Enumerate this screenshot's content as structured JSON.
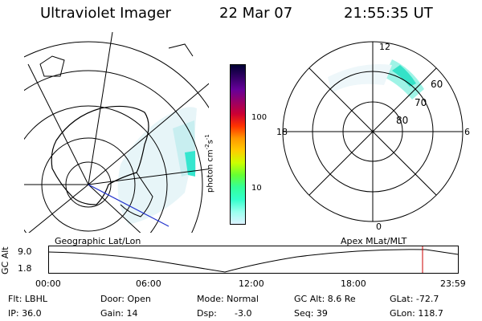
{
  "header": {
    "instrument": "Ultraviolet Imager",
    "date": "22 Mar 07",
    "time": "21:55:35 UT"
  },
  "colorbar": {
    "unit_label": "photon cm",
    "unit_sup1": "-2",
    "unit_s": "s",
    "unit_sup2": "-1",
    "ticks": [
      "100",
      "10"
    ],
    "scale": "log",
    "colors": [
      "#000033",
      "#330066",
      "#660099",
      "#990066",
      "#cc0033",
      "#ff3300",
      "#ff9900",
      "#ffcc00",
      "#ccff00",
      "#66ff33",
      "#33ff99",
      "#33ffcc",
      "#99ffee",
      "#ddf3ff"
    ]
  },
  "mlt_plot": {
    "lat_labels": [
      "60",
      "70",
      "80"
    ],
    "mlt_labels": {
      "top": "12",
      "left": "18",
      "right": "6",
      "bottom": "0"
    }
  },
  "timeline": {
    "left_label": "Geographic Lat/Lon",
    "right_label": "Apex MLat/MLT",
    "y_axis_title": "GC Alt",
    "y_ticks": [
      "9.0",
      "1.8"
    ],
    "x_ticks": [
      "00:00",
      "06:00",
      "12:00",
      "18:00",
      "23:59"
    ],
    "marker_color": "#cc0000"
  },
  "status": {
    "flt": "Flt: LBHL",
    "ip": "IP: 36.0",
    "door": "Door: Open",
    "gain": "Gain: 14",
    "mode": "Mode: Normal",
    "dsp": "Dsp:",
    "dsp_val": "-3.0",
    "gcalt": "GC Alt: 8.6 Re",
    "seq": "Seq: 39",
    "glat": "GLat: -72.7",
    "glon": "GLon: 118.7"
  }
}
